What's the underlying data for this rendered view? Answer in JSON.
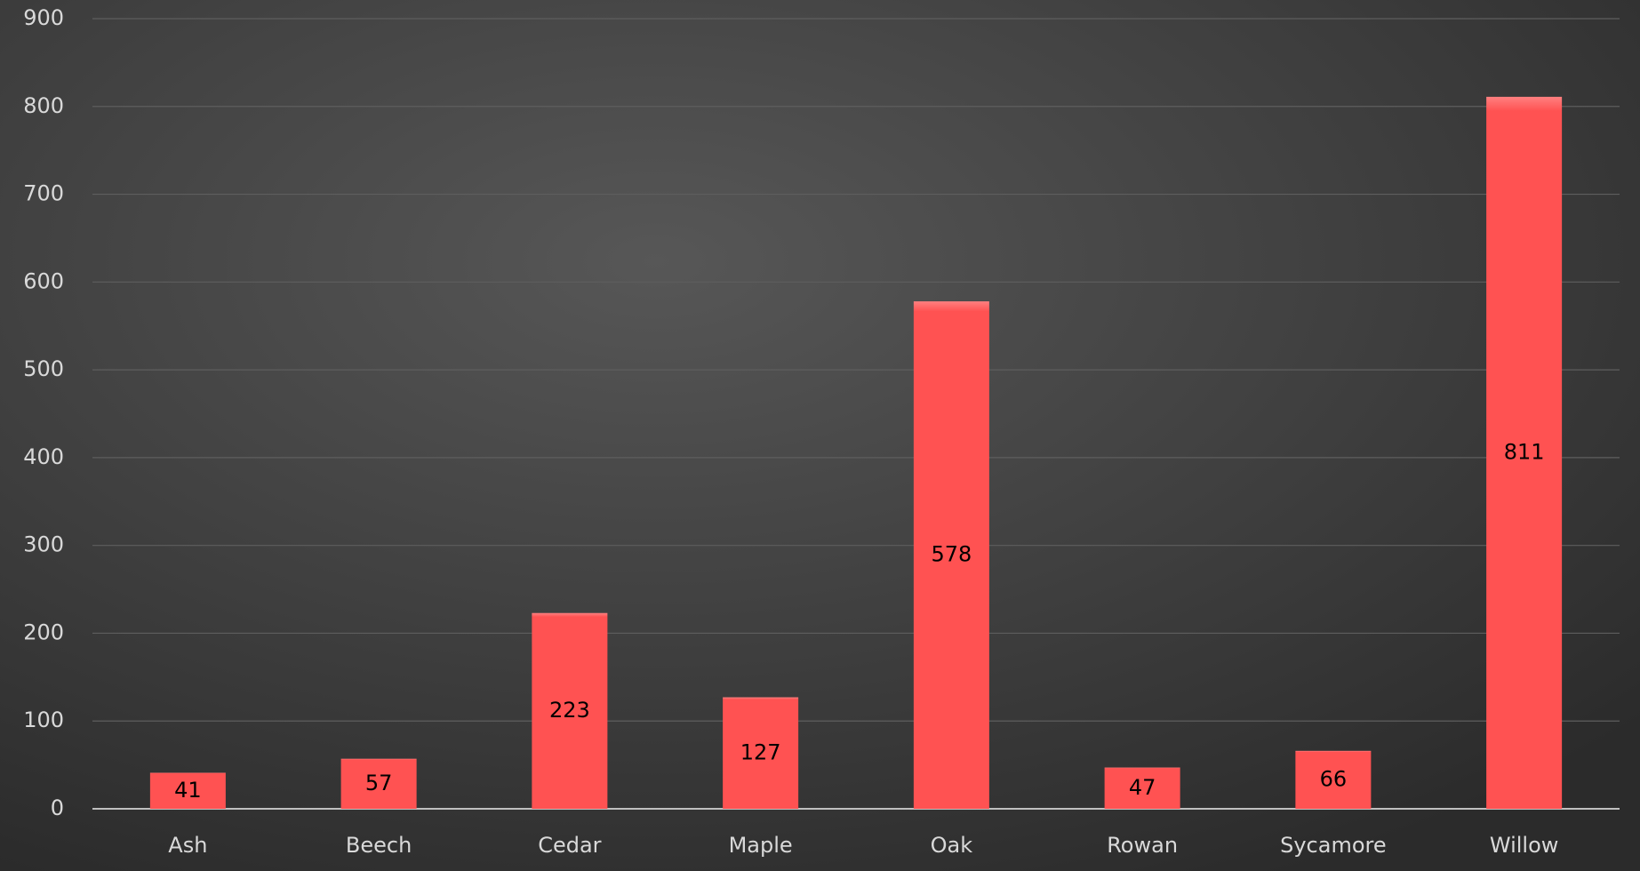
{
  "chart_data": {
    "type": "bar",
    "categories": [
      "Ash",
      "Beech",
      "Cedar",
      "Maple",
      "Oak",
      "Rowan",
      "Sycamore",
      "Willow"
    ],
    "values": [
      41,
      57,
      223,
      127,
      578,
      47,
      66,
      811
    ],
    "color": "#ff5252",
    "ylim": [
      0,
      900
    ],
    "yticks": [
      0,
      100,
      200,
      300,
      400,
      500,
      600,
      700,
      800,
      900
    ],
    "grid": true
  }
}
